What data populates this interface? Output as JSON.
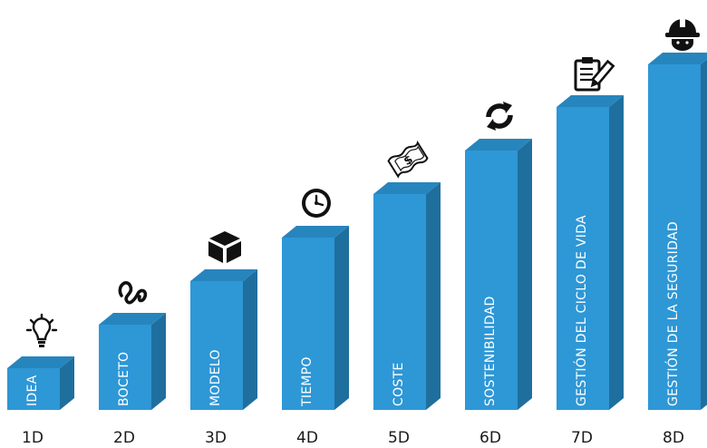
{
  "colors": {
    "front": "#2e97d6",
    "side": "#1f6f9e",
    "top": "#2785bd",
    "icon": "#111111",
    "label": "#1a1a1a"
  },
  "steps": [
    {
      "dimension": "1D",
      "label": "IDEA",
      "level": 1,
      "icon": "lightbulb-icon"
    },
    {
      "dimension": "2D",
      "label": "BOCETO",
      "level": 2,
      "icon": "squiggle-sketch-icon"
    },
    {
      "dimension": "3D",
      "label": "MODELO",
      "level": 3,
      "icon": "cube-icon"
    },
    {
      "dimension": "4D",
      "label": "TIEMPO",
      "level": 4,
      "icon": "clock-icon"
    },
    {
      "dimension": "5D",
      "label": "COSTE",
      "level": 5,
      "icon": "money-bill-icon"
    },
    {
      "dimension": "6D",
      "label": "SOSTENIBILIDAD",
      "level": 6,
      "icon": "recycle-arrows-icon"
    },
    {
      "dimension": "7D",
      "label": "GESTIÓN DEL CICLO DE VIDA",
      "level": 7,
      "icon": "clipboard-pencil-icon"
    },
    {
      "dimension": "8D",
      "label": "GESTIÓN DE LA SEGURIDAD",
      "level": 8,
      "icon": "hard-hat-icon"
    }
  ]
}
